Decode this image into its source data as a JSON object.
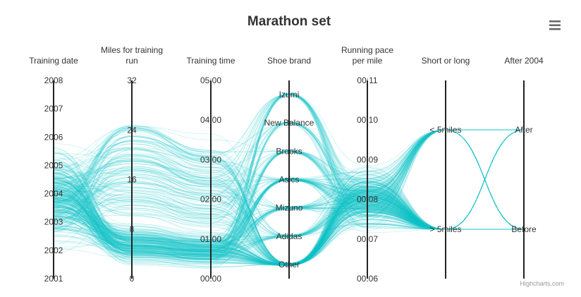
{
  "chart_data": {
    "type": "parallel-coordinates",
    "title": "Marathon set",
    "line_color": "#14c5c8",
    "axes": [
      {
        "title": [
          "Training date"
        ],
        "ticks": [
          "2001",
          "2002",
          "2003",
          "2004",
          "2005",
          "2006",
          "2007",
          "2008"
        ]
      },
      {
        "title": [
          "Miles for training",
          "run"
        ],
        "ticks": [
          "0",
          "8",
          "16",
          "24",
          "32"
        ]
      },
      {
        "title": [
          "Training time"
        ],
        "ticks": [
          "00:00",
          "01:00",
          "02:00",
          "03:00",
          "04:00",
          "05:00"
        ]
      },
      {
        "title": [
          "Shoe brand"
        ],
        "ticks": [
          "Other",
          "Adidas",
          "Mizuno",
          "Asics",
          "Brooks",
          "New Balance",
          "Izumi"
        ]
      },
      {
        "title": [
          "Running pace",
          "per mile"
        ],
        "ticks": [
          "00:06",
          "00:07",
          "00:08",
          "00:09",
          "00:10",
          "00:11"
        ]
      },
      {
        "title": [
          "Short or long"
        ],
        "ticks": [
          "> 5miles",
          "< 5miles"
        ]
      },
      {
        "title": [
          "After 2004"
        ],
        "ticks": [
          "Before",
          "After"
        ]
      }
    ]
  },
  "menu_icon": "hamburger-menu-icon",
  "credits": "Highcharts.com"
}
